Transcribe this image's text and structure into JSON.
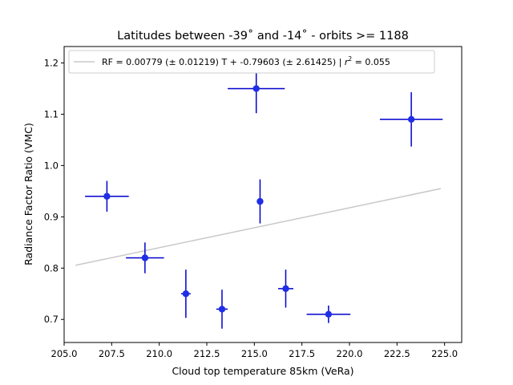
{
  "chart_data": {
    "type": "scatter",
    "title": "Latitudes between -39˚ and -14˚ - orbits >= 1188",
    "xlabel": "Cloud top temperature 85km (VeRa)",
    "ylabel": "Radiance Factor Ratio (VMC)",
    "xlim": [
      205.0,
      225.9
    ],
    "ylim": [
      0.655,
      1.232
    ],
    "x_ticks": [
      205.0,
      207.5,
      210.0,
      212.5,
      215.0,
      217.5,
      220.0,
      222.5,
      225.0
    ],
    "x_tick_labels": [
      "205.0",
      "207.5",
      "210.0",
      "212.5",
      "215.0",
      "217.5",
      "220.0",
      "222.5",
      "225.0"
    ],
    "y_ticks": [
      0.7,
      0.8,
      0.9,
      1.0,
      1.1,
      1.2
    ],
    "y_tick_labels": [
      "0.7",
      "0.8",
      "0.9",
      "1.0",
      "1.1",
      "1.2"
    ],
    "grid": false,
    "legend": {
      "placement": "top-left",
      "label_prefix": "RF = 0.00779 (± 0.01219) T + -0.79603 (± 2.61425) | ",
      "label_r2_symbol": "r",
      "label_r2_exp": "2",
      "label_r2_value": " = 0.055"
    },
    "colors": {
      "points": "#1f2ee6",
      "errorbars": "#0000cd",
      "fit_line": "#c8c8c8"
    },
    "points": [
      {
        "x": 207.25,
        "y": 0.94,
        "xerr": 1.15,
        "yerr": 0.03
      },
      {
        "x": 209.25,
        "y": 0.82,
        "xerr": 1.0,
        "yerr": 0.03
      },
      {
        "x": 211.4,
        "y": 0.75,
        "xerr": 0.25,
        "yerr": 0.047
      },
      {
        "x": 213.3,
        "y": 0.72,
        "xerr": 0.3,
        "yerr": 0.038
      },
      {
        "x": 215.1,
        "y": 1.15,
        "xerr": 1.5,
        "yerr": 0.048
      },
      {
        "x": 215.3,
        "y": 0.93,
        "xerr": 0.0,
        "yerr": 0.043
      },
      {
        "x": 216.65,
        "y": 0.76,
        "xerr": 0.4,
        "yerr": 0.037
      },
      {
        "x": 218.9,
        "y": 0.71,
        "xerr": 1.15,
        "yerr": 0.017
      },
      {
        "x": 223.25,
        "y": 1.09,
        "xerr": 1.65,
        "yerr": 0.053
      }
    ],
    "fit_line": {
      "x": [
        205.6,
        224.8
      ],
      "y": [
        0.8055,
        0.955
      ]
    }
  }
}
